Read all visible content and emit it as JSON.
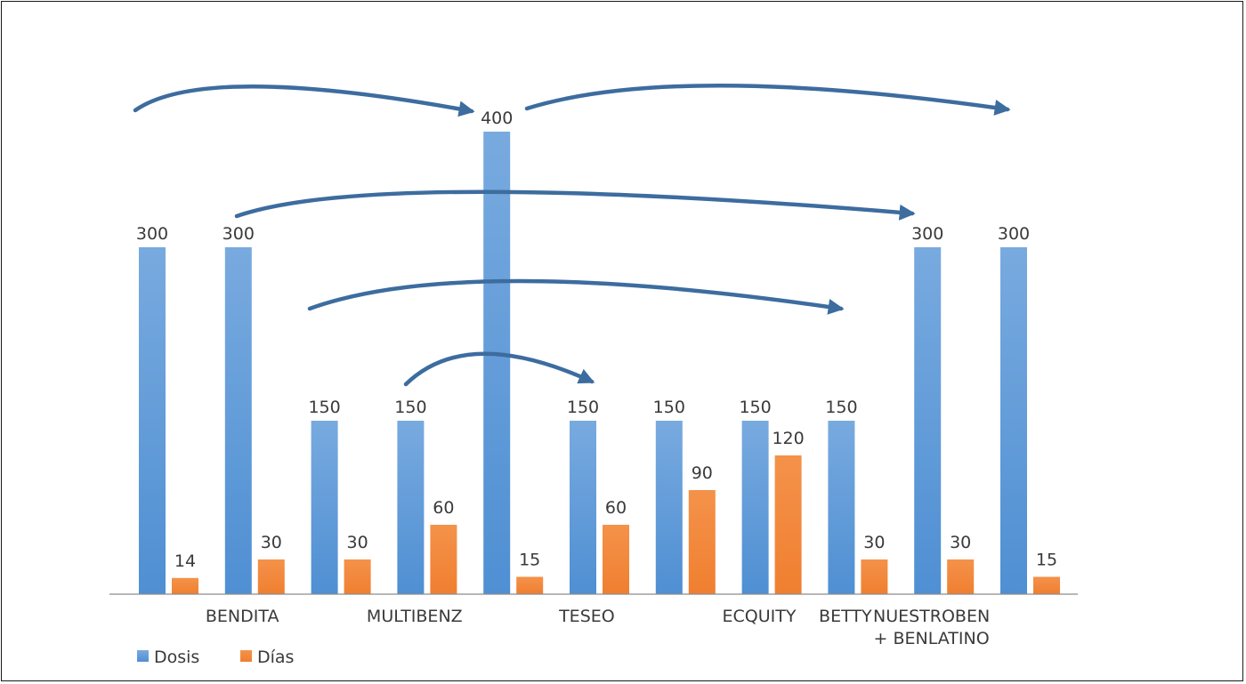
{
  "chart_data": {
    "type": "bar",
    "title": "",
    "xlabel": "",
    "ylabel": "",
    "ylim": [
      0,
      400
    ],
    "grid": false,
    "legend_placement": "bottom-left",
    "colors": {
      "Dosis": "#4f8fd3",
      "Días": "#f07f30",
      "arrow": "#3d6c9f"
    },
    "groups": [
      {
        "label": "",
        "dosis": 300,
        "dias": 14
      },
      {
        "label": "BENDITA",
        "dosis": 300,
        "dias": 30
      },
      {
        "label": "",
        "dosis": 150,
        "dias": 30
      },
      {
        "label": "MULTIBENZ",
        "dosis": 150,
        "dias": 60
      },
      {
        "label": "",
        "dosis": 400,
        "dias": 15
      },
      {
        "label": "TESEO",
        "dosis": 150,
        "dias": 60
      },
      {
        "label": "",
        "dosis": 150,
        "dias": 90
      },
      {
        "label": "ECQUITY",
        "dosis": 150,
        "dias": 120
      },
      {
        "label": "BETTY",
        "dosis": 150,
        "dias": 30
      },
      {
        "label": "NUESTROBEN\n+ BENLATINO",
        "dosis": 300,
        "dias": 30
      },
      {
        "label": "",
        "dosis": 300,
        "dias": 15
      }
    ],
    "series": [
      {
        "name": "Dosis"
      },
      {
        "name": "Días"
      }
    ],
    "arrows": [
      {
        "from_group": 0,
        "to_group": 4
      },
      {
        "from_group": 4,
        "to_group": 10
      },
      {
        "from_group": 1,
        "to_group": 9
      },
      {
        "from_group": 2,
        "to_group": 8
      },
      {
        "from_group": 3,
        "to_group": 5
      }
    ]
  }
}
